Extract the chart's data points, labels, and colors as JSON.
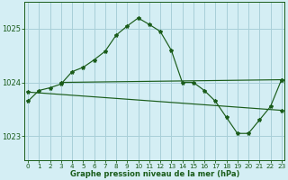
{
  "line1": {
    "x": [
      0,
      1,
      2,
      3,
      4,
      5,
      6,
      7,
      8,
      9,
      10,
      11,
      12,
      13,
      14,
      15,
      16,
      17,
      18,
      19,
      20,
      21,
      22,
      23
    ],
    "y": [
      1023.65,
      1023.85,
      1023.9,
      1023.97,
      1024.2,
      1024.28,
      1024.42,
      1024.58,
      1024.88,
      1025.05,
      1025.2,
      1025.08,
      1024.95,
      1024.6,
      1024.0,
      1024.0,
      1023.85,
      1023.65,
      1023.35,
      1023.05,
      1023.05,
      1023.3,
      1023.55,
      1024.05
    ]
  },
  "line2": {
    "x": [
      3,
      23
    ],
    "y": [
      1024.0,
      1024.05
    ]
  },
  "line3": {
    "x": [
      0,
      23
    ],
    "y": [
      1023.82,
      1023.48
    ]
  },
  "line_color": "#1a5c1a",
  "bg_color": "#d4eef4",
  "grid_color": "#a8cfd8",
  "yticks": [
    1023,
    1024,
    1025
  ],
  "xlim": [
    -0.3,
    23.3
  ],
  "ylim": [
    1022.55,
    1025.5
  ],
  "xlabel": "Graphe pression niveau de la mer (hPa)",
  "xticks": [
    0,
    1,
    2,
    3,
    4,
    5,
    6,
    7,
    8,
    9,
    10,
    11,
    12,
    13,
    14,
    15,
    16,
    17,
    18,
    19,
    20,
    21,
    22,
    23
  ],
  "marker_size": 3.0,
  "line_width": 0.85
}
